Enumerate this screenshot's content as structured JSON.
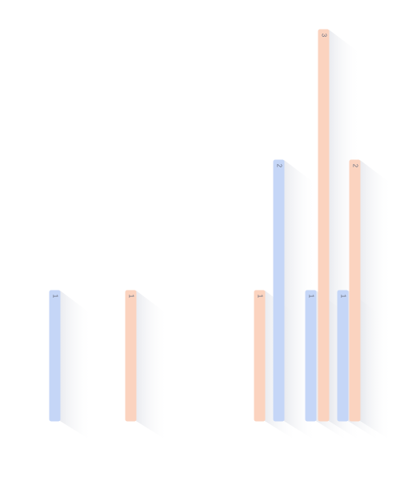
{
  "chart_data": {
    "type": "bar",
    "values": [
      1,
      1,
      1,
      2,
      1,
      3,
      1,
      2
    ],
    "colors": [
      "#c5d6f7",
      "#fbd3bf",
      "#fbd3bf",
      "#c5d6f7",
      "#c5d6f7",
      "#fbd3bf",
      "#c5d6f7",
      "#fbd3bf"
    ],
    "ylim": [
      0,
      3
    ]
  }
}
